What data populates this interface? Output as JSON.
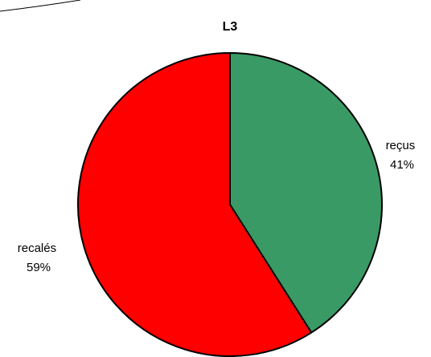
{
  "chart_data": {
    "type": "pie",
    "title": "L3",
    "slices": [
      {
        "category": "reçus",
        "value": 41,
        "percent_label": "41%",
        "color": "#3a9a66"
      },
      {
        "category": "recalés",
        "value": 59,
        "percent_label": "59%",
        "color": "#ff0000"
      }
    ],
    "start": "12 o'clock",
    "direction": "clockwise",
    "outline_color": "#000000"
  },
  "decoration": {
    "corner_line_color": "#000000"
  }
}
